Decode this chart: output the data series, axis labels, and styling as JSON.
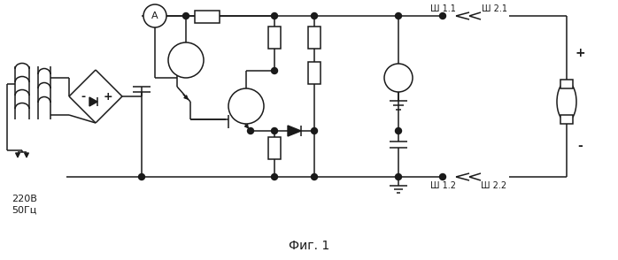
{
  "title": "Фиг. 1",
  "label_220": "220В",
  "label_50": "50Гц",
  "label_sh11": "Ш 1.1",
  "label_sh21": "Ш 2.1",
  "label_sh12": "Ш 1.2",
  "label_sh22": "Ш 2.2",
  "line_color": "#1a1a1a",
  "bg_color": "#ffffff",
  "fig_width": 6.98,
  "fig_height": 2.94,
  "dpi": 100
}
